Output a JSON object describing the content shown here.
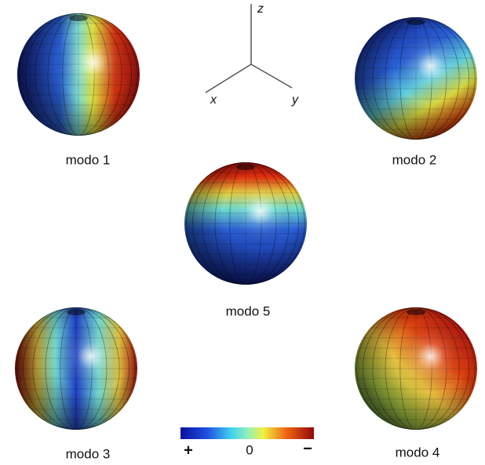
{
  "axes": {
    "z": "z",
    "x": "x",
    "y": "y"
  },
  "spheres": [
    {
      "label": "modo 1"
    },
    {
      "label": "modo 2"
    },
    {
      "label": "modo 5"
    },
    {
      "label": "modo 3"
    },
    {
      "label": "modo 4"
    }
  ],
  "colorbar": {
    "labels": [
      "+",
      "0",
      "−"
    ]
  }
}
